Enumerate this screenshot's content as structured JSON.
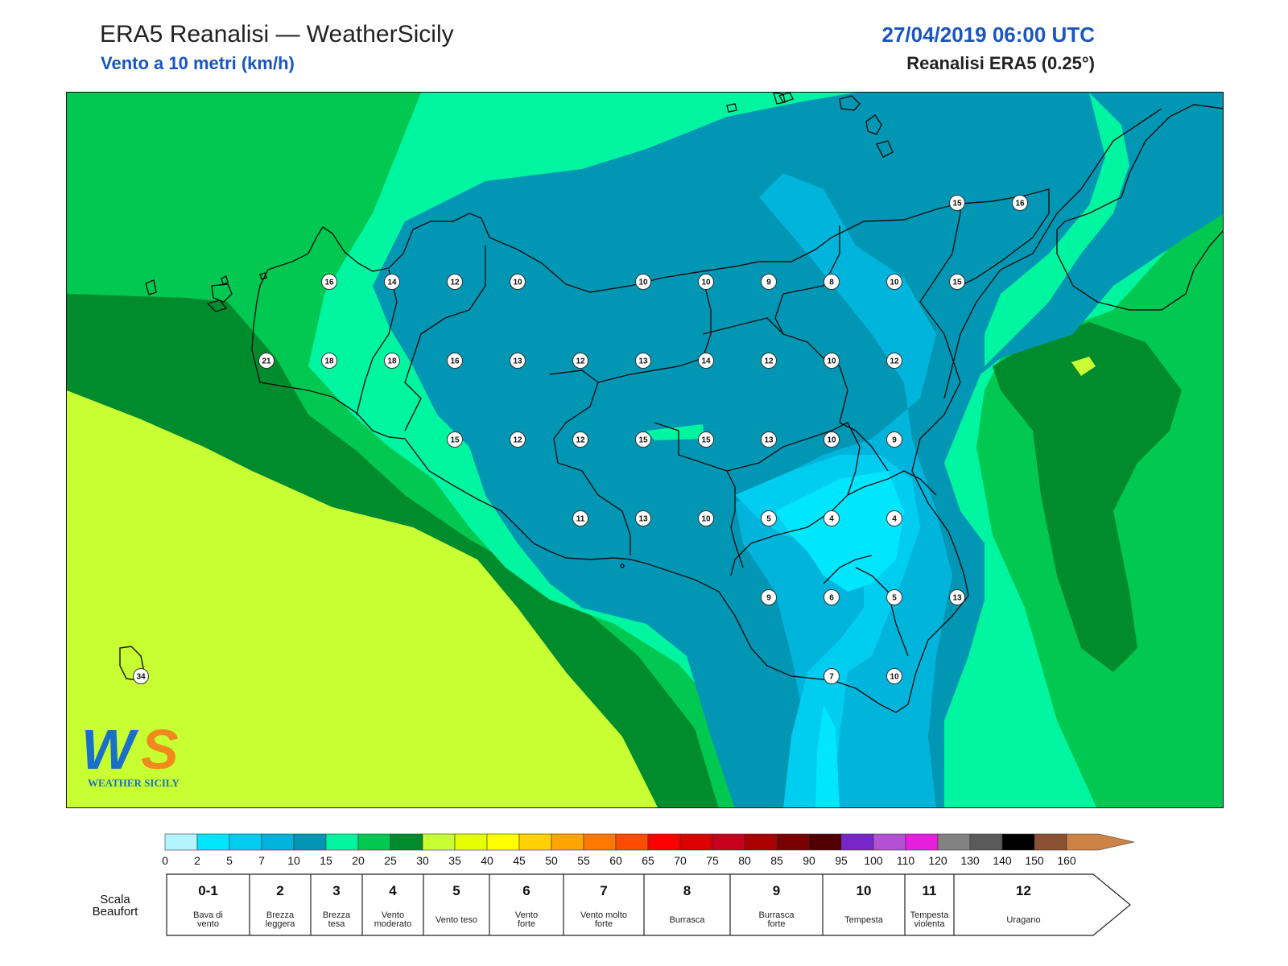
{
  "header": {
    "title": "ERA5 Reanalisi — WeatherSicily",
    "subtitle": "Vento a 10 metri (km/h)",
    "datetime": "27/04/2019 06:00 UTC",
    "source": "Reanalisi ERA5 (0.25°)"
  },
  "logo": {
    "line1": "WS",
    "line2": "WEATHER SICILY",
    "colors": {
      "w": "#1a6fc8",
      "s": "#f08a1c",
      "text": "#1a6fc8"
    }
  },
  "stations": [
    {
      "v": "16"
    },
    {
      "v": "14"
    },
    {
      "v": "12"
    },
    {
      "v": "10"
    },
    {
      "v": "10"
    },
    {
      "v": "10"
    },
    {
      "v": "9"
    },
    {
      "v": "8"
    },
    {
      "v": "10"
    },
    {
      "v": "15"
    },
    {
      "v": "21"
    },
    {
      "v": "18"
    },
    {
      "v": "18"
    },
    {
      "v": "16"
    },
    {
      "v": "13"
    },
    {
      "v": "12"
    },
    {
      "v": "13"
    },
    {
      "v": "14"
    },
    {
      "v": "12"
    },
    {
      "v": "10"
    },
    {
      "v": "12"
    },
    {
      "v": "15"
    },
    {
      "v": "12"
    },
    {
      "v": "12"
    },
    {
      "v": "15"
    },
    {
      "v": "15"
    },
    {
      "v": "13"
    },
    {
      "v": "10"
    },
    {
      "v": "9"
    },
    {
      "v": "11"
    },
    {
      "v": "13"
    },
    {
      "v": "10"
    },
    {
      "v": "5"
    },
    {
      "v": "4"
    },
    {
      "v": "4"
    },
    {
      "v": "9"
    },
    {
      "v": "6"
    },
    {
      "v": "5"
    },
    {
      "v": "13"
    },
    {
      "v": "7"
    },
    {
      "v": "10"
    },
    {
      "v": "15"
    },
    {
      "v": "16"
    },
    {
      "v": "34"
    }
  ],
  "colorbar": {
    "ticks": [
      "0",
      "2",
      "5",
      "7",
      "10",
      "15",
      "20",
      "25",
      "30",
      "35",
      "40",
      "45",
      "50",
      "55",
      "60",
      "65",
      "70",
      "75",
      "80",
      "85",
      "90",
      "95",
      "100",
      "110",
      "120",
      "130",
      "140",
      "150",
      "160"
    ],
    "colors": [
      "#b4f4ff",
      "#00e6ff",
      "#00cdf0",
      "#00b4dc",
      "#0096b4",
      "#00f5a0",
      "#00c850",
      "#008c2d",
      "#c8ff32",
      "#e6ff00",
      "#ffff00",
      "#ffd200",
      "#ffa500",
      "#ff7800",
      "#ff4b00",
      "#ff0000",
      "#dc0000",
      "#c8001e",
      "#aa0000",
      "#780000",
      "#500000",
      "#7828c8",
      "#b450d2",
      "#e61ede",
      "#828282",
      "#5a5a5a",
      "#000000",
      "#8c5032",
      "#cd8246"
    ]
  },
  "beaufort": {
    "label": "Scala Beaufort",
    "cells": [
      {
        "num": "0-1",
        "name": "Bava di vento"
      },
      {
        "num": "2",
        "name": "Brezza leggera"
      },
      {
        "num": "3",
        "name": "Brezza tesa"
      },
      {
        "num": "4",
        "name": "Vento moderato"
      },
      {
        "num": "5",
        "name": "Vento teso"
      },
      {
        "num": "6",
        "name": "Vento forte"
      },
      {
        "num": "7",
        "name": "Vento molto forte"
      },
      {
        "num": "8",
        "name": "Burrasca"
      },
      {
        "num": "9",
        "name": "Burrasca forte"
      },
      {
        "num": "10",
        "name": "Tempesta"
      },
      {
        "num": "11",
        "name": "Tempesta violenta"
      },
      {
        "num": "12",
        "name": "Uragano"
      }
    ]
  }
}
